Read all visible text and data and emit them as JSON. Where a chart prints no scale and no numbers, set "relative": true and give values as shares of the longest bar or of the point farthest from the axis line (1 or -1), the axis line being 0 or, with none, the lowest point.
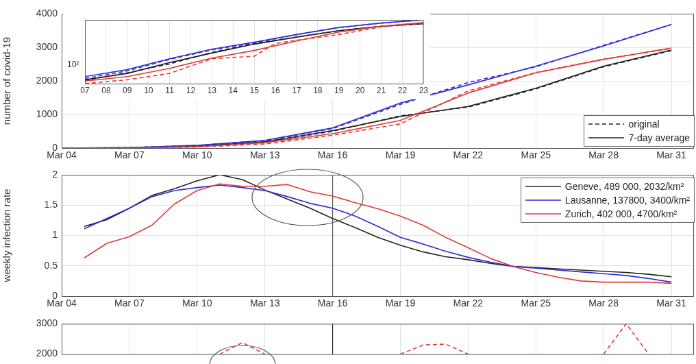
{
  "chart_data": [
    {
      "type": "line",
      "ylabel": "number of covid-19",
      "xlim": [
        "--03-04",
        "--04-01"
      ],
      "xticks": [
        {
          "value": "--03-04",
          "label": "Mar 04"
        },
        {
          "value": "--03-07",
          "label": "Mar 07"
        },
        {
          "value": "--03-10",
          "label": "Mar 10"
        },
        {
          "value": "--03-13",
          "label": "Mar 13"
        },
        {
          "value": "--03-16",
          "label": "Mar 16"
        },
        {
          "value": "--03-19",
          "label": "Mar 19"
        },
        {
          "value": "--03-22",
          "label": "Mar 22"
        },
        {
          "value": "--03-25",
          "label": "Mar 25"
        },
        {
          "value": "--03-28",
          "label": "Mar 28"
        },
        {
          "value": "--03-31",
          "label": "Mar 31"
        }
      ],
      "ylim": [
        0,
        4000
      ],
      "yticks": [
        0,
        1000,
        2000,
        3000,
        4000
      ],
      "grid": true,
      "legend": "bottom right",
      "x": [
        "--03-04",
        "--03-07",
        "--03-10",
        "--03-13",
        "--03-16",
        "--03-19",
        "--03-22",
        "--03-25",
        "--03-28",
        "--03-31"
      ],
      "series": [
        {
          "name": "original",
          "color": "#222222",
          "line_style": "dashed",
          "values": [
            0,
            10,
            50,
            180,
            500,
            960,
            1220,
            1760,
            2420,
            2900
          ]
        },
        {
          "name": "7-day average",
          "color": "#222222",
          "line_style": "solid",
          "values": [
            0,
            10,
            50,
            190,
            520,
            940,
            1240,
            1780,
            2440,
            2920
          ]
        },
        {
          "color": "#2b2bd9",
          "line_style": "dashed",
          "values": [
            0,
            15,
            80,
            220,
            580,
            1300,
            1950,
            2420,
            3060,
            3680
          ]
        },
        {
          "color": "#2b2bd9",
          "line_style": "solid",
          "values": [
            0,
            15,
            80,
            230,
            600,
            1340,
            1880,
            2440,
            3040,
            3680
          ]
        },
        {
          "color": "#e03a3a",
          "line_style": "dashed",
          "values": [
            0,
            5,
            30,
            120,
            380,
            720,
            1700,
            2250,
            2650,
            2960
          ]
        },
        {
          "color": "#e03a3a",
          "line_style": "solid",
          "values": [
            0,
            8,
            40,
            160,
            430,
            820,
            1640,
            2240,
            2640,
            2980
          ]
        }
      ]
    },
    {
      "type": "line",
      "relative": true,
      "annotations": [
        "10²"
      ],
      "xlim": [
        "--03-07",
        "--03-23"
      ],
      "xticks": [
        {
          "value": "--03-07",
          "label": "07"
        },
        {
          "value": "--03-08",
          "label": "08"
        },
        {
          "value": "--03-09",
          "label": "09"
        },
        {
          "value": "--03-10",
          "label": "10"
        },
        {
          "value": "--03-11",
          "label": "11"
        },
        {
          "value": "--03-12",
          "label": "12"
        },
        {
          "value": "--03-13",
          "label": "13"
        },
        {
          "value": "--03-14",
          "label": "14"
        },
        {
          "value": "--03-15",
          "label": "15"
        },
        {
          "value": "--03-16",
          "label": "16"
        },
        {
          "value": "--03-17",
          "label": "17"
        },
        {
          "value": "--03-18",
          "label": "18"
        },
        {
          "value": "--03-19",
          "label": "19"
        },
        {
          "value": "--03-20",
          "label": "20"
        },
        {
          "value": "--03-21",
          "label": "21"
        },
        {
          "value": "--03-22",
          "label": "22"
        },
        {
          "value": "--03-23",
          "label": "23"
        }
      ],
      "grid": "x",
      "x": [
        "--03-07",
        "--03-09",
        "--03-11",
        "--03-13",
        "--03-15",
        "--03-17",
        "--03-19",
        "--03-21",
        "--03-23"
      ],
      "series": [
        {
          "color": "#222222",
          "line_style": "dashed",
          "values": [
            0.05,
            0.17,
            0.31,
            0.49,
            0.63,
            0.73,
            0.83,
            0.9,
            0.94
          ]
        },
        {
          "color": "#222222",
          "line_style": "solid",
          "values": [
            0.06,
            0.16,
            0.33,
            0.48,
            0.62,
            0.73,
            0.83,
            0.9,
            0.94
          ]
        },
        {
          "color": "#2b2bd9",
          "line_style": "dashed",
          "values": [
            0.08,
            0.2,
            0.38,
            0.53,
            0.64,
            0.77,
            0.88,
            0.95,
            1
          ]
        },
        {
          "color": "#2b2bd9",
          "line_style": "solid",
          "values": [
            0.11,
            0.22,
            0.39,
            0.54,
            0.65,
            0.77,
            0.88,
            0.95,
            1
          ]
        },
        {
          "color": "#e03a3a",
          "line_style": "dashed",
          "x": [
            "--03-07",
            "--03-09",
            "--03-11",
            "--03-13",
            "--03-15",
            "--03-16",
            "--03-17",
            "--03-19",
            "--03-21",
            "--03-23"
          ],
          "values": [
            0,
            0.06,
            0.16,
            0.39,
            0.43,
            0.63,
            0.68,
            0.77,
            0.89,
            0.95
          ]
        },
        {
          "color": "#e03a3a",
          "line_style": "solid",
          "values": [
            0.04,
            0.11,
            0.24,
            0.4,
            0.52,
            0.67,
            0.81,
            0.9,
            0.96
          ]
        }
      ]
    },
    {
      "type": "line",
      "ylabel": "weekly infection rate",
      "xlim": [
        "--03-04",
        "--04-01"
      ],
      "xticks": [
        {
          "value": "--03-04",
          "label": "Mar 04"
        },
        {
          "value": "--03-07",
          "label": "Mar 07"
        },
        {
          "value": "--03-10",
          "label": "Mar 10"
        },
        {
          "value": "--03-13",
          "label": "Mar 13"
        },
        {
          "value": "--03-16",
          "label": "Mar 16"
        },
        {
          "value": "--03-19",
          "label": "Mar 19"
        },
        {
          "value": "--03-22",
          "label": "Mar 22"
        },
        {
          "value": "--03-25",
          "label": "Mar 25"
        },
        {
          "value": "--03-28",
          "label": "Mar 28"
        },
        {
          "value": "--03-31",
          "label": "Mar 31"
        }
      ],
      "ylim": [
        0,
        2
      ],
      "yticks": [
        0,
        0.5,
        1,
        1.5,
        2
      ],
      "grid": true,
      "legend": "top right",
      "ref_lines": [
        {
          "axis": "x",
          "value": "--03-16",
          "color": "#555555"
        }
      ],
      "x": [
        "--03-05",
        "--03-06",
        "--03-07",
        "--03-08",
        "--03-09",
        "--03-10",
        "--03-11",
        "--03-12",
        "--03-13",
        "--03-14",
        "--03-15",
        "--03-16",
        "--03-17",
        "--03-18",
        "--03-19",
        "--03-20",
        "--03-21",
        "--03-22",
        "--03-23",
        "--03-24",
        "--03-25",
        "--03-26",
        "--03-27",
        "--03-28",
        "--03-29",
        "--03-30",
        "--03-31"
      ],
      "series": [
        {
          "name": "Geneve, 489 000, 2032/km²",
          "color": "#222222",
          "values": [
            1.15,
            1.26,
            1.45,
            1.66,
            1.77,
            1.9,
            2.0,
            1.92,
            1.75,
            1.6,
            1.45,
            1.28,
            1.13,
            0.97,
            0.84,
            0.73,
            0.65,
            0.6,
            0.54,
            0.49,
            0.47,
            0.45,
            0.43,
            0.41,
            0.39,
            0.36,
            0.32
          ]
        },
        {
          "name": "Lausanne, 137800, 3400/km²",
          "color": "#2b2bd9",
          "values": [
            1.11,
            1.28,
            1.45,
            1.64,
            1.74,
            1.79,
            1.83,
            1.79,
            1.74,
            1.64,
            1.53,
            1.45,
            1.32,
            1.15,
            0.97,
            0.86,
            0.74,
            0.64,
            0.56,
            0.49,
            0.46,
            0.43,
            0.4,
            0.37,
            0.34,
            0.29,
            0.23
          ]
        },
        {
          "name": "Zurich, 402 000, 4700/km²",
          "color": "#e03a3a",
          "values": [
            0.63,
            0.87,
            0.98,
            1.17,
            1.52,
            1.74,
            1.85,
            1.81,
            1.81,
            1.84,
            1.72,
            1.65,
            1.54,
            1.44,
            1.32,
            1.17,
            0.97,
            0.8,
            0.62,
            0.49,
            0.39,
            0.31,
            0.25,
            0.23,
            0.23,
            0.23,
            0.21
          ]
        }
      ]
    },
    {
      "type": "line",
      "tick_labels": "y",
      "xlim": [
        "--03-04",
        "--04-01"
      ],
      "xticks": [
        {
          "value": "--03-04",
          "label": "Mar 04"
        },
        {
          "value": "--03-07",
          "label": "Mar 07"
        },
        {
          "value": "--03-10",
          "label": "Mar 10"
        },
        {
          "value": "--03-13",
          "label": "Mar 13"
        },
        {
          "value": "--03-16",
          "label": "Mar 16"
        },
        {
          "value": "--03-19",
          "label": "Mar 19"
        },
        {
          "value": "--03-22",
          "label": "Mar 22"
        },
        {
          "value": "--03-25",
          "label": "Mar 25"
        },
        {
          "value": "--03-28",
          "label": "Mar 28"
        },
        {
          "value": "--03-31",
          "label": "Mar 31"
        }
      ],
      "ylim": [
        2000,
        3000
      ],
      "yticks": [
        2000,
        3000
      ],
      "grid": "x",
      "ref_lines": [
        {
          "axis": "x",
          "value": "--03-16",
          "color": "#222222"
        }
      ],
      "series": [
        {
          "color": "#e03a3a",
          "line_style": "dashed",
          "x": [
            "--03-11",
            "--03-12",
            "--03-13"
          ],
          "values": [
            2000,
            2380,
            2000
          ]
        },
        {
          "color": "#e03a3a",
          "line_style": "dashed",
          "x": [
            "--03-19",
            "--03-20",
            "--03-21",
            "--03-22"
          ],
          "values": [
            2000,
            2300,
            2330,
            2000
          ]
        },
        {
          "color": "#e03a3a",
          "line_style": "dashed",
          "x": [
            "--03-28",
            "--03-29",
            "--03-30"
          ],
          "values": [
            2000,
            3000,
            2000
          ]
        }
      ]
    }
  ]
}
